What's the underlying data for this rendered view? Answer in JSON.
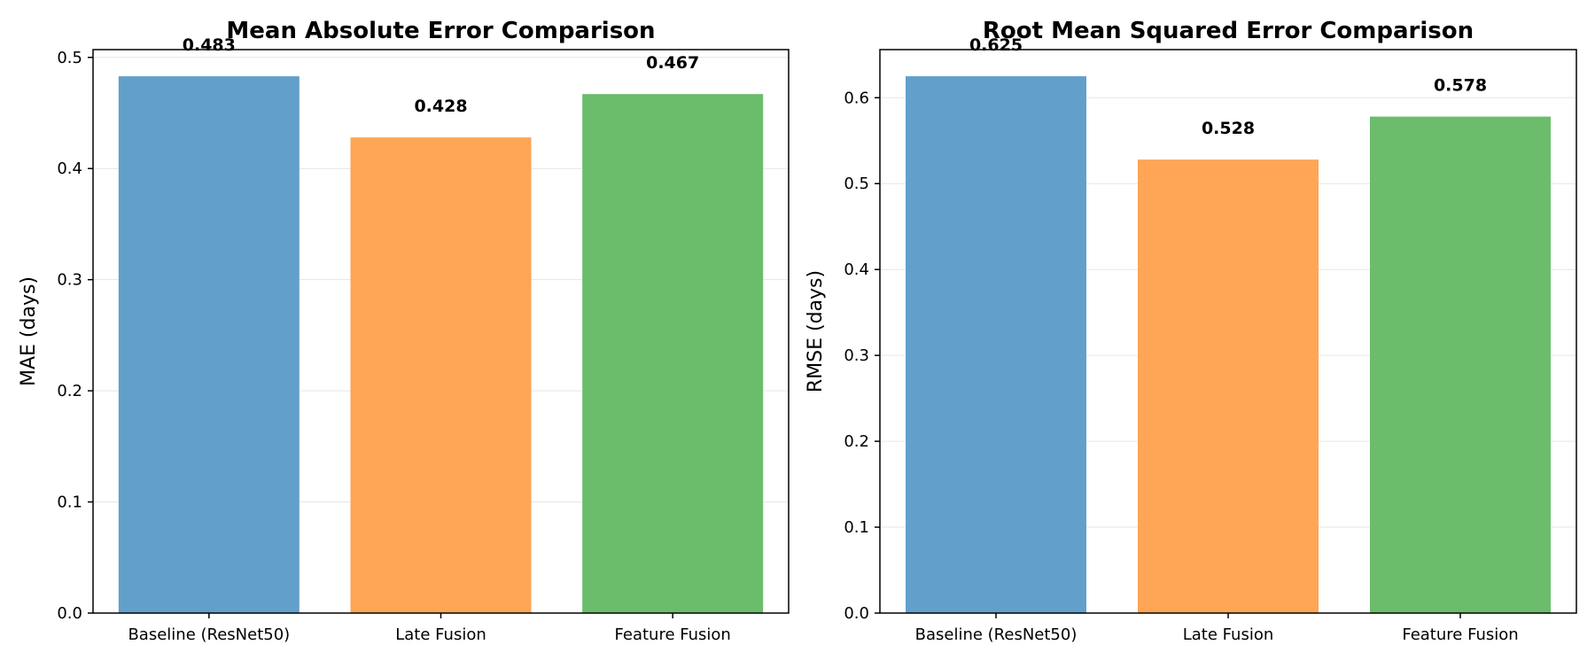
{
  "colors": {
    "bars": [
      "#62a0cb",
      "#ffa556",
      "#6bbd6b"
    ],
    "grid": "#e6e6e6",
    "frame": "#000000"
  },
  "chart_data": [
    {
      "type": "bar",
      "title": "Mean Absolute Error Comparison",
      "xlabel": "",
      "ylabel": "MAE (days)",
      "categories": [
        "Baseline (ResNet50)",
        "Late Fusion",
        "Feature Fusion"
      ],
      "values": [
        0.483,
        0.428,
        0.467
      ],
      "value_labels": [
        "0.483",
        "0.428",
        "0.467"
      ],
      "ylim": [
        0,
        0.507
      ],
      "yticks": [
        0.0,
        0.1,
        0.2,
        0.3,
        0.4,
        0.5
      ],
      "ytick_labels": [
        "0.0",
        "0.1",
        "0.2",
        "0.3",
        "0.4",
        "0.5"
      ],
      "grid": true,
      "legend": "none"
    },
    {
      "type": "bar",
      "title": "Root Mean Squared Error Comparison",
      "xlabel": "",
      "ylabel": "RMSE (days)",
      "categories": [
        "Baseline (ResNet50)",
        "Late Fusion",
        "Feature Fusion"
      ],
      "values": [
        0.625,
        0.528,
        0.578
      ],
      "value_labels": [
        "0.625",
        "0.528",
        "0.578"
      ],
      "ylim": [
        0,
        0.656
      ],
      "yticks": [
        0.0,
        0.1,
        0.2,
        0.3,
        0.4,
        0.5,
        0.6
      ],
      "ytick_labels": [
        "0.0",
        "0.1",
        "0.2",
        "0.3",
        "0.4",
        "0.5",
        "0.6"
      ],
      "grid": true,
      "legend": "none"
    }
  ]
}
